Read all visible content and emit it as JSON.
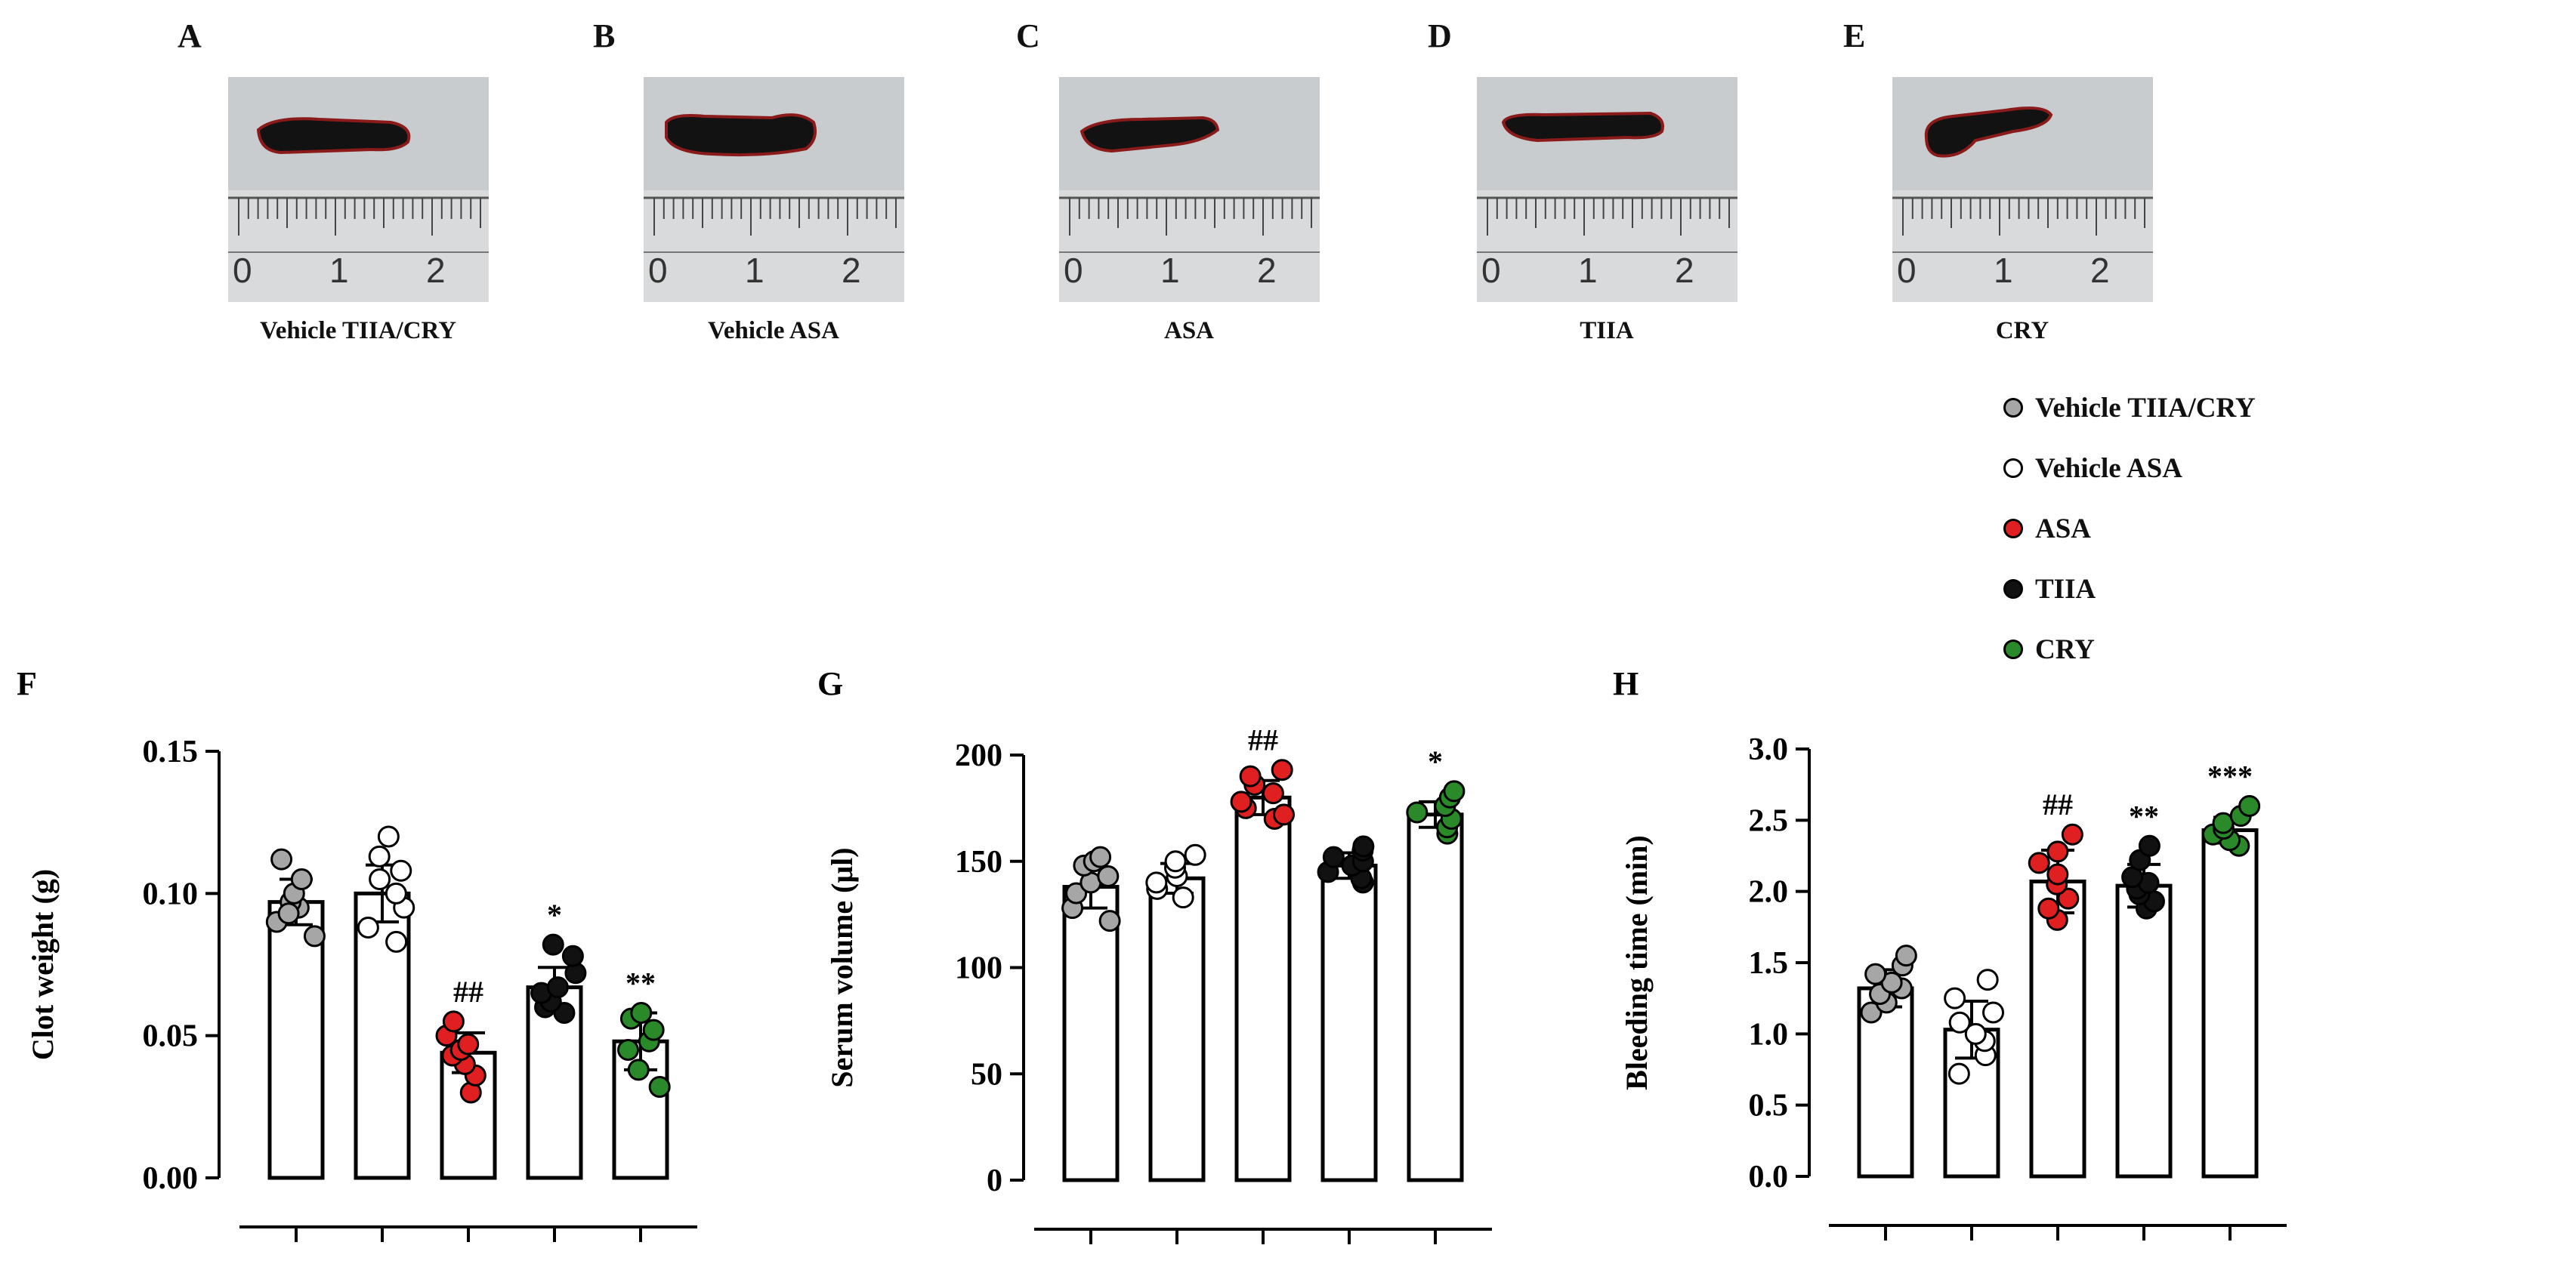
{
  "photos": [
    {
      "letter": "A",
      "caption": "Vehicle TIIA/CRY",
      "ruler_labels": [
        "0",
        "1",
        "2"
      ]
    },
    {
      "letter": "B",
      "caption": "Vehicle ASA",
      "ruler_labels": [
        "0",
        "1",
        "2"
      ]
    },
    {
      "letter": "C",
      "caption": "ASA",
      "ruler_labels": [
        "0",
        "1",
        "2"
      ]
    },
    {
      "letter": "D",
      "caption": "TIIA",
      "ruler_labels": [
        "0",
        "1",
        "2"
      ]
    },
    {
      "letter": "E",
      "caption": "CRY",
      "ruler_labels": [
        "0",
        "1",
        "2"
      ]
    }
  ],
  "legend": [
    {
      "label": "Vehicle TIIA/CRY",
      "color": "#a6a6a6"
    },
    {
      "label": "Vehicle ASA",
      "color": "#ffffff"
    },
    {
      "label": "ASA",
      "color": "#e02020"
    },
    {
      "label": "TIIA",
      "color": "#111111"
    },
    {
      "label": "CRY",
      "color": "#2a8a2a"
    }
  ],
  "chart_data": [
    {
      "panel": "F",
      "type": "bar",
      "ylabel": "Clot weight (g)",
      "ylim": [
        0,
        0.15
      ],
      "yticks": [
        0.0,
        0.05,
        0.1,
        0.15
      ],
      "tick_labels": [
        "0.00",
        "0.05",
        "0.10",
        "0.15"
      ],
      "categories": [
        "Vehicle TIIA/CRY",
        "Vehicle ASA",
        "ASA",
        "TIIA",
        "CRY"
      ],
      "colors": [
        "#a6a6a6",
        "#ffffff",
        "#e02020",
        "#111111",
        "#2a8a2a"
      ],
      "values": [
        0.097,
        0.1,
        0.044,
        0.067,
        0.048
      ],
      "errors": [
        0.008,
        0.01,
        0.007,
        0.007,
        0.01
      ],
      "annotations": [
        "",
        "",
        "##",
        "*",
        "**"
      ],
      "points": [
        [
          0.085,
          0.09,
          0.095,
          0.097,
          0.1,
          0.105,
          0.112,
          0.093
        ],
        [
          0.083,
          0.088,
          0.095,
          0.1,
          0.105,
          0.108,
          0.113,
          0.12
        ],
        [
          0.03,
          0.036,
          0.04,
          0.043,
          0.045,
          0.047,
          0.05,
          0.055
        ],
        [
          0.058,
          0.06,
          0.062,
          0.065,
          0.067,
          0.072,
          0.078,
          0.082
        ],
        [
          0.032,
          0.038,
          0.045,
          0.048,
          0.052,
          0.056,
          0.058
        ]
      ]
    },
    {
      "panel": "G",
      "type": "bar",
      "ylabel": "Serum volume (μl)",
      "ylim": [
        0,
        200
      ],
      "yticks": [
        0,
        50,
        100,
        150,
        200
      ],
      "tick_labels": [
        "0",
        "50",
        "100",
        "150",
        "200"
      ],
      "categories": [
        "Vehicle TIIA/CRY",
        "Vehicle ASA",
        "ASA",
        "TIIA",
        "CRY"
      ],
      "colors": [
        "#a6a6a6",
        "#ffffff",
        "#e02020",
        "#111111",
        "#2a8a2a"
      ],
      "values": [
        138,
        142,
        180,
        148,
        172
      ],
      "errors": [
        10,
        7,
        8,
        6,
        6
      ],
      "annotations": [
        "",
        "",
        "##",
        "",
        "*"
      ],
      "points": [
        [
          122,
          128,
          135,
          140,
          143,
          148,
          150,
          152
        ],
        [
          133,
          137,
          140,
          143,
          147,
          150,
          153
        ],
        [
          170,
          172,
          175,
          178,
          182,
          186,
          190,
          193
        ],
        [
          140,
          142,
          145,
          148,
          150,
          152,
          155,
          157
        ],
        [
          163,
          166,
          170,
          173,
          176,
          180,
          183
        ]
      ]
    },
    {
      "panel": "H",
      "type": "bar",
      "ylabel": "Bleeding time (min)",
      "ylim": [
        0,
        3.0
      ],
      "yticks": [
        0,
        0.5,
        1.0,
        1.5,
        2.0,
        2.5,
        3.0
      ],
      "tick_labels": [
        "0.0",
        "0.5",
        "1.0",
        "1.5",
        "2.0",
        "2.5",
        "3.0"
      ],
      "categories": [
        "Vehicle TIIA/CRY",
        "Vehicle ASA",
        "ASA",
        "TIIA",
        "CRY"
      ],
      "colors": [
        "#a6a6a6",
        "#ffffff",
        "#e02020",
        "#111111",
        "#2a8a2a"
      ],
      "values": [
        1.32,
        1.03,
        2.07,
        2.04,
        2.43
      ],
      "errors": [
        0.13,
        0.2,
        0.22,
        0.15,
        0.09
      ],
      "annotations": [
        "",
        "",
        "##",
        "**",
        "***"
      ],
      "points": [
        [
          1.15,
          1.22,
          1.28,
          1.32,
          1.36,
          1.42,
          1.48,
          1.55
        ],
        [
          0.72,
          0.85,
          0.95,
          1.0,
          1.08,
          1.15,
          1.25,
          1.38
        ],
        [
          1.8,
          1.88,
          1.95,
          2.05,
          2.12,
          2.2,
          2.28,
          2.4
        ],
        [
          1.88,
          1.93,
          1.98,
          2.02,
          2.06,
          2.1,
          2.22,
          2.32
        ],
        [
          2.32,
          2.36,
          2.4,
          2.44,
          2.48,
          2.53,
          2.6
        ]
      ]
    }
  ]
}
